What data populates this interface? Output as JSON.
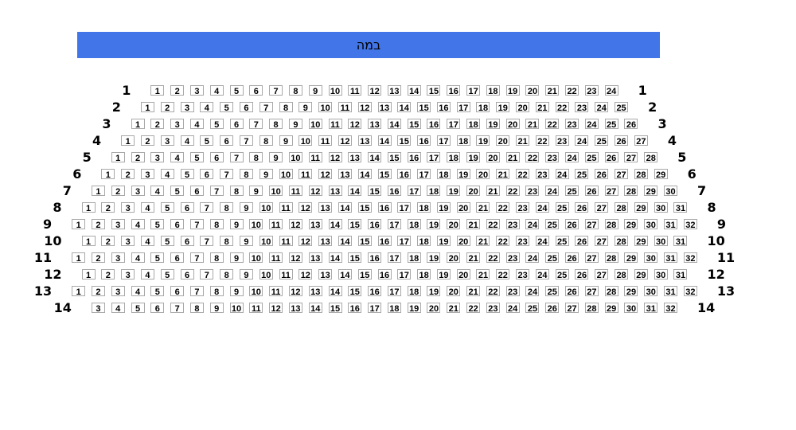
{
  "stage": {
    "label": "במה",
    "background_color": "#4276e8",
    "text_color": "#000000"
  },
  "seating": {
    "seat_border_color": "#a8a8a8",
    "seat_background_color": "#ffffff",
    "rows": [
      {
        "label": "1",
        "from": 1,
        "to": 24
      },
      {
        "label": "2",
        "from": 1,
        "to": 25
      },
      {
        "label": "3",
        "from": 1,
        "to": 26
      },
      {
        "label": "4",
        "from": 1,
        "to": 27
      },
      {
        "label": "5",
        "from": 1,
        "to": 28
      },
      {
        "label": "6",
        "from": 1,
        "to": 29
      },
      {
        "label": "7",
        "from": 1,
        "to": 30
      },
      {
        "label": "8",
        "from": 1,
        "to": 31
      },
      {
        "label": "9",
        "from": 1,
        "to": 32
      },
      {
        "label": "10",
        "from": 1,
        "to": 31
      },
      {
        "label": "11",
        "from": 1,
        "to": 32
      },
      {
        "label": "12",
        "from": 1,
        "to": 31
      },
      {
        "label": "13",
        "from": 1,
        "to": 32
      },
      {
        "label": "14",
        "from": 3,
        "to": 32
      }
    ]
  }
}
